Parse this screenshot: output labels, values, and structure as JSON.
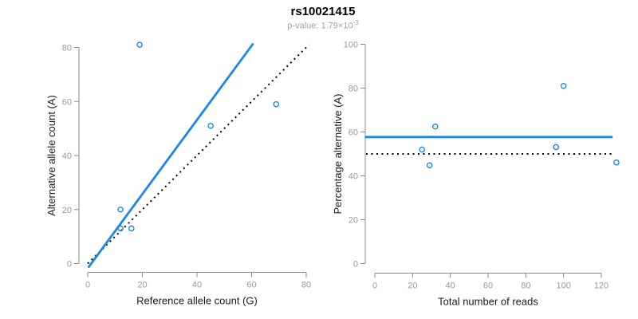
{
  "figure": {
    "title": "rs10021415",
    "p_value_base": "p-value: 1.79×10",
    "p_value_exponent": "-3",
    "colors": {
      "accent_blue": "#1C86EE",
      "axis_gray": "#8c8c8c",
      "tick_label_gray": "#999999",
      "subtitle_gray": "#a3a3a3",
      "dotted_black": "#000000"
    }
  },
  "chart_data": [
    {
      "type": "scatter",
      "xlabel": "Reference allele count (G)",
      "ylabel": "Alternative allele count (A)",
      "xlim": [
        0,
        80
      ],
      "ylim": [
        0,
        80
      ],
      "xticks": [
        0,
        20,
        40,
        60,
        80
      ],
      "yticks": [
        0,
        20,
        40,
        60,
        80
      ],
      "points": [
        [
          12,
          13
        ],
        [
          12,
          20
        ],
        [
          16,
          13
        ],
        [
          19,
          81
        ],
        [
          45,
          51
        ],
        [
          69,
          59
        ]
      ],
      "lines": [
        {
          "name": "identity-line",
          "style": "dotted",
          "color": "#000000",
          "from": [
            0,
            0
          ],
          "to": [
            81,
            81
          ]
        },
        {
          "name": "ase-fit-line",
          "style": "solid",
          "color": "#1C86EE",
          "from": [
            0.4,
            -1.2
          ],
          "to": [
            60.4,
            81.2
          ]
        }
      ],
      "legend": "none",
      "grid": false
    },
    {
      "type": "scatter",
      "xlabel": "Total number of reads",
      "ylabel": "Percentage alternative (A)",
      "xlim": [
        0,
        120
      ],
      "ylim": [
        0,
        100
      ],
      "xticks": [
        0,
        20,
        40,
        60,
        80,
        100,
        120
      ],
      "yticks": [
        0,
        20,
        40,
        60,
        80,
        100
      ],
      "points": [
        [
          25,
          52
        ],
        [
          29,
          44.8
        ],
        [
          32,
          62.5
        ],
        [
          96,
          53.1
        ],
        [
          100,
          81
        ],
        [
          128,
          46.1
        ]
      ],
      "lines": [
        {
          "name": "expected-50-percent-line",
          "style": "dotted",
          "color": "#000000",
          "type": "hline",
          "value": 50
        },
        {
          "name": "mean-percentage-line",
          "style": "solid",
          "color": "#1C86EE",
          "type": "hline",
          "value": 57.7
        }
      ],
      "legend": "none",
      "grid": false
    }
  ]
}
